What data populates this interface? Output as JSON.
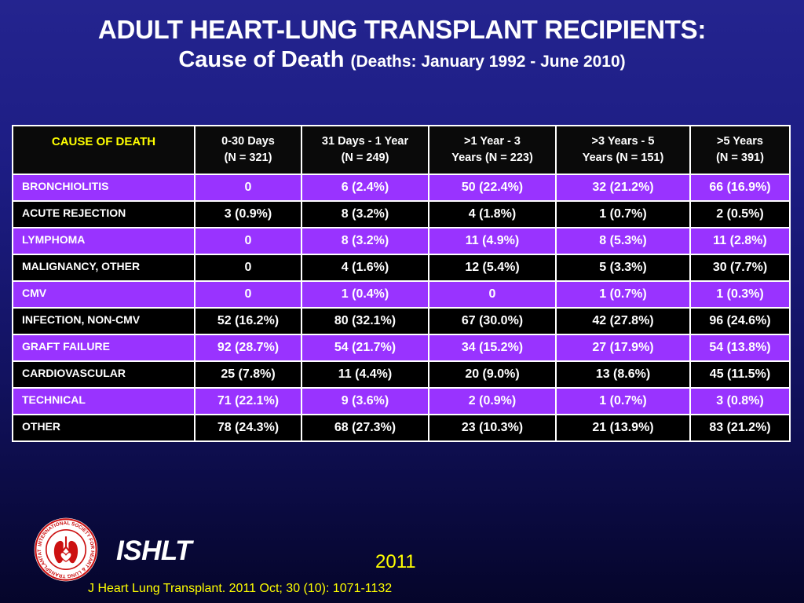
{
  "title": {
    "line1": "ADULT HEART-LUNG TRANSPLANT RECIPIENTS:",
    "line2_main": "Cause of Death",
    "line2_sub": "(Deaths: January 1992 - June 2010)"
  },
  "table": {
    "cause_header": "CAUSE OF DEATH",
    "columns": [
      {
        "line1": "0-30 Days",
        "line2": "(N = 321)"
      },
      {
        "line1": "31 Days - 1 Year",
        "line2": "(N = 249)"
      },
      {
        "line1": ">1 Year - 3",
        "line2": "Years  (N = 223)"
      },
      {
        "line1": ">3 Years - 5",
        "line2": "Years   (N = 151)"
      },
      {
        "line1": ">5 Years",
        "line2": "(N = 391)"
      }
    ],
    "rows": [
      {
        "cause": "BRONCHIOLITIS",
        "values": [
          "0",
          "6 (2.4%)",
          "50 (22.4%)",
          "32 (21.2%)",
          "66 (16.9%)"
        ]
      },
      {
        "cause": "ACUTE REJECTION",
        "values": [
          "3 (0.9%)",
          "8 (3.2%)",
          "4 (1.8%)",
          "1 (0.7%)",
          "2 (0.5%)"
        ]
      },
      {
        "cause": "LYMPHOMA",
        "values": [
          "0",
          "8 (3.2%)",
          "11 (4.9%)",
          "8 (5.3%)",
          "11 (2.8%)"
        ]
      },
      {
        "cause": "MALIGNANCY, OTHER",
        "values": [
          "0",
          "4 (1.6%)",
          "12 (5.4%)",
          "5 (3.3%)",
          "30 (7.7%)"
        ]
      },
      {
        "cause": "CMV",
        "values": [
          "0",
          "1 (0.4%)",
          "0",
          "1 (0.7%)",
          "1 (0.3%)"
        ]
      },
      {
        "cause": "INFECTION, NON-CMV",
        "values": [
          "52 (16.2%)",
          "80 (32.1%)",
          "67 (30.0%)",
          "42 (27.8%)",
          "96 (24.6%)"
        ]
      },
      {
        "cause": "GRAFT FAILURE",
        "values": [
          "92 (28.7%)",
          "54 (21.7%)",
          "34 (15.2%)",
          "27 (17.9%)",
          "54 (13.8%)"
        ]
      },
      {
        "cause": "CARDIOVASCULAR",
        "values": [
          "25 (7.8%)",
          "11 (4.4%)",
          "20 (9.0%)",
          "13 (8.6%)",
          "45 (11.5%)"
        ]
      },
      {
        "cause": "TECHNICAL",
        "values": [
          "71 (22.1%)",
          "9 (3.6%)",
          "2 (0.9%)",
          "1 (0.7%)",
          "3 (0.8%)"
        ]
      },
      {
        "cause": "OTHER",
        "values": [
          "78 (24.3%)",
          "68 (27.3%)",
          "23 (10.3%)",
          "21 (13.9%)",
          "83 (21.2%)"
        ]
      }
    ]
  },
  "colors": {
    "header_text_accent": "#ffff00",
    "row_odd": "#9933ff",
    "row_even": "#000000",
    "footer_text": "#ffff00"
  },
  "footer": {
    "logo_icon": "ishlt-seal-logo-icon",
    "logo_ring_text": "INTERNATIONAL SOCIETY FOR HEART & LUNG TRANSPLANTATION",
    "org": "ISHLT",
    "year": "2011",
    "citation": "J Heart Lung Transplant. 2011 Oct; 30 (10): 1071-1132"
  }
}
